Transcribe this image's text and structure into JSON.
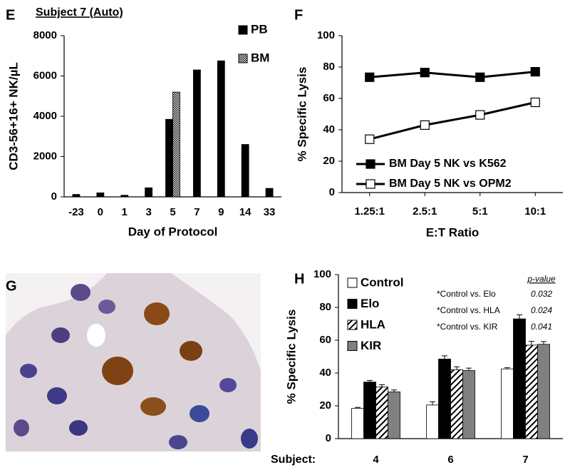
{
  "chart_data": [
    {
      "type": "bar",
      "panel": "E",
      "title": "Subject 7 (Auto)",
      "ylabel": "CD3-56+16+ NK/µL",
      "xlabel": "Day of Protocol",
      "categories": [
        "-23",
        "0",
        "1",
        "3",
        "5",
        "7",
        "9",
        "14",
        "33"
      ],
      "series": [
        {
          "name": "PB",
          "color": "#000000",
          "values": [
            120,
            200,
            80,
            450,
            3850,
            6300,
            6750,
            2600,
            420
          ]
        },
        {
          "name": "BM",
          "color": "#000000",
          "pattern": "checker",
          "values": [
            null,
            null,
            null,
            null,
            5200,
            null,
            null,
            null,
            null
          ]
        }
      ],
      "ylim": [
        0,
        8000
      ],
      "yticks": [
        0,
        2000,
        4000,
        6000,
        8000
      ],
      "legend": "upper right"
    },
    {
      "type": "line",
      "panel": "F",
      "ylabel": "% Specific Lysis",
      "xlabel": "E:T Ratio",
      "categories": [
        "1.25:1",
        "2.5:1",
        "5:1",
        "10:1"
      ],
      "series": [
        {
          "name": "BM Day 5 NK vs K562",
          "color": "#000000",
          "marker": "filled-square",
          "values": [
            73.5,
            76.5,
            73.5,
            77
          ]
        },
        {
          "name": "BM Day 5 NK vs OPM2",
          "color": "#000000",
          "marker": "open-square",
          "values": [
            34,
            43,
            49.5,
            57.5
          ]
        }
      ],
      "ylim": [
        0,
        100
      ],
      "yticks": [
        0,
        20,
        40,
        60,
        80,
        100
      ],
      "legend": "lower center"
    },
    {
      "type": "bar",
      "panel": "H",
      "ylabel": "% Specific Lysis",
      "xlabel": "Subject:",
      "categories": [
        "4",
        "6",
        "7"
      ],
      "series": [
        {
          "name": "Control",
          "color": "#ffffff",
          "values": [
            18.5,
            20.5,
            42.5
          ],
          "errors": [
            0.5,
            2,
            0.7
          ]
        },
        {
          "name": "Elo",
          "color": "#000000",
          "values": [
            34.5,
            48.5,
            73
          ],
          "errors": [
            1,
            2,
            2.5
          ]
        },
        {
          "name": "HLA",
          "color": "#ffffff",
          "pattern": "hatch",
          "values": [
            31.5,
            42,
            57
          ],
          "errors": [
            1.3,
            1.8,
            2.3
          ]
        },
        {
          "name": "KIR",
          "color": "#808080",
          "values": [
            28.5,
            41.5,
            57.5
          ],
          "errors": [
            1.2,
            1.5,
            1.7
          ]
        }
      ],
      "ylim": [
        0,
        100
      ],
      "yticks": [
        0,
        20,
        40,
        60,
        80,
        100
      ],
      "legend": "upper left",
      "annotations": {
        "header": "p-value",
        "rows": [
          {
            "label": "*Control vs. Elo",
            "value": 0.032
          },
          {
            "label": "*Control vs. HLA",
            "value": 0.024
          },
          {
            "label": "*Control vs. KIR",
            "value": 0.041
          }
        ]
      }
    }
  ],
  "image_panel": {
    "panel": "G"
  }
}
